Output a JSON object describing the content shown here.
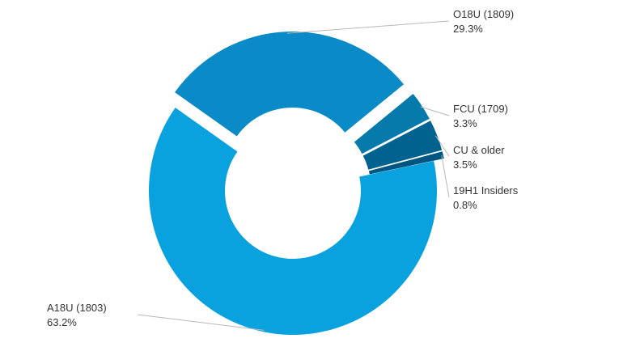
{
  "chart_data": {
    "type": "pie",
    "variant": "donut",
    "title": "",
    "slices": [
      {
        "name": "O18U (1809)",
        "value": 29.3,
        "label": "29.3%",
        "color": "#0a8ac6",
        "exploded": true
      },
      {
        "name": "FCU (1709)",
        "value": 3.3,
        "label": "3.3%",
        "color": "#067aab",
        "exploded": true
      },
      {
        "name": "CU & older",
        "value": 3.5,
        "label": "3.5%",
        "color": "#00628f",
        "exploded": true
      },
      {
        "name": "19H1 Insiders",
        "value": 0.8,
        "label": "0.8%",
        "color": "#005680",
        "exploded": true
      },
      {
        "name": "A18U (1803)",
        "value": 63.2,
        "label": "63.2%",
        "color": "#0aa2de",
        "exploded": false
      }
    ],
    "legend": "none",
    "labels": "outside-with-leader-lines",
    "start_angle": "approx. 11 o'clock",
    "direction": "clockwise"
  }
}
